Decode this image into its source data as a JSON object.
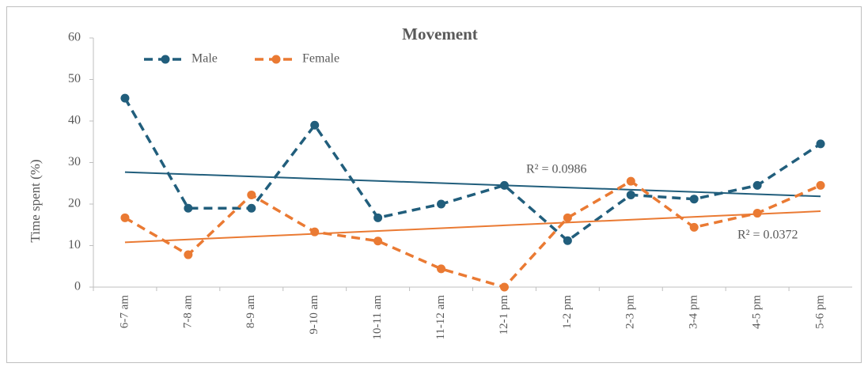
{
  "chart_data": {
    "type": "line",
    "title": "Movement",
    "y_label": "Time spent (%)",
    "categories": [
      "6-7 am",
      "7-8 am",
      "8-9 am",
      "9-10 am",
      "10-11 am",
      "11-12 am",
      "12-1 pm",
      "1-2 pm",
      "2-3 pm",
      "3-4 pm",
      "4-5 pm",
      "5-6 pm"
    ],
    "series": [
      {
        "name": "Male",
        "color": "#215e7c",
        "values": [
          45.5,
          19,
          19,
          39,
          16.7,
          20,
          24.5,
          11.2,
          22.2,
          21.2,
          24.5,
          34.5
        ]
      },
      {
        "name": "Female",
        "color": "#ea7a33",
        "values": [
          16.7,
          7.8,
          22.2,
          13.3,
          11.1,
          4.4,
          0,
          16.7,
          25.5,
          14.4,
          17.8,
          24.5
        ]
      }
    ],
    "trendline": "linear",
    "annotations": [
      "R² = 0.0986",
      "R² = 0.0372"
    ],
    "ylim": [
      0,
      60
    ],
    "yticks": [
      0,
      10,
      20,
      30,
      40,
      50,
      60
    ],
    "grid": false,
    "legend": "top-left"
  }
}
